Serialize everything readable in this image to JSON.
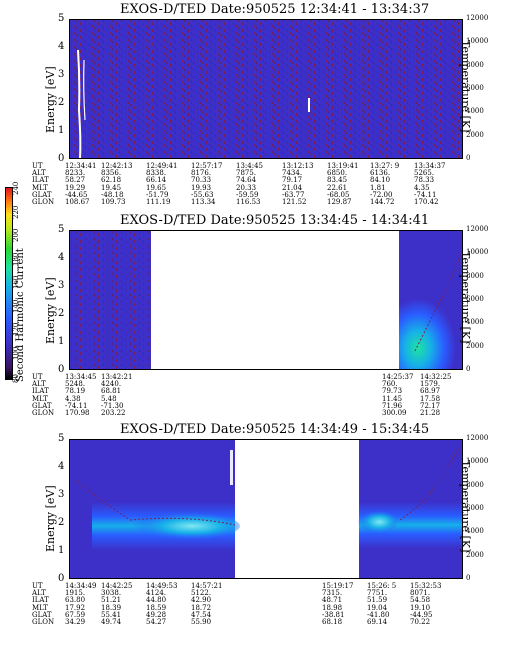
{
  "chart_data": [
    {
      "type": "heatmap",
      "title": "EXOS-D/TED  Date:950525  12:34:41 - 13:34:37",
      "ylabel": "Energy [eV]",
      "y2label": "Temperature [K]",
      "ylim": [
        0,
        5
      ],
      "y2lim": [
        0,
        12000
      ],
      "yticks": [
        "0",
        "1",
        "2",
        "3",
        "4",
        "5"
      ],
      "y2ticks": [
        "0",
        "2000",
        "4000",
        "6000",
        "8000",
        "10000",
        "12000"
      ],
      "rows": [
        {
          "name": "UT",
          "values": [
            "12:34:41",
            "12:42:13",
            "12:49:41",
            "12:57:17",
            "13:4:45",
            "13:12:13",
            "13:19:41",
            "13:27: 9",
            "13:34:37"
          ]
        },
        {
          "name": "ALT",
          "values": [
            "8233.",
            "8356.",
            "8338.",
            "8176.",
            "7875.",
            "7434.",
            "6850.",
            "6136.",
            "5265."
          ]
        },
        {
          "name": "ILAT",
          "values": [
            "58.27",
            "62.18",
            "66.14",
            "70.33",
            "74.64",
            "79.17",
            "83.45",
            "84.10",
            "78.33"
          ]
        },
        {
          "name": "MLT",
          "values": [
            "19.29",
            "19.45",
            "19.65",
            "19.93",
            "20.33",
            "21.04",
            "22.61",
            "1.81",
            "4.35"
          ]
        },
        {
          "name": "GLAT",
          "values": [
            "-44.65",
            "-48.18",
            "-51.79",
            "-55.63",
            "-59.59",
            "-63.77",
            "-68.05",
            "-72.00",
            "-74.11"
          ]
        },
        {
          "name": "GLON",
          "values": [
            "108.67",
            "109.73",
            "111.19",
            "113.34",
            "116.53",
            "121.52",
            "129.87",
            "144.72",
            "170.42"
          ]
        }
      ]
    },
    {
      "type": "heatmap",
      "title": "EXOS-D/TED   Date:950525  13:34:45 - 14:34:41",
      "ylabel": "Energy [eV]",
      "y2label": "Temperature [K]",
      "ylim": [
        0,
        5
      ],
      "y2lim": [
        0,
        12000
      ],
      "yticks": [
        "0",
        "1",
        "2",
        "3",
        "4",
        "5"
      ],
      "y2ticks": [
        "0",
        "2000",
        "4000",
        "6000",
        "8000",
        "10000",
        "12000"
      ],
      "rows": [
        {
          "name": "UT",
          "values": [
            "13:34:45",
            "13:42:21",
            "14:25:37",
            "14:32:25"
          ]
        },
        {
          "name": "ALT",
          "values": [
            "5248.",
            "4240.",
            "760.",
            "1579."
          ]
        },
        {
          "name": "ILAT",
          "values": [
            "78.19",
            "68.81",
            "79.73",
            "68.97"
          ]
        },
        {
          "name": "MLT",
          "values": [
            "4.38",
            "5.48",
            "11.45",
            "17.58"
          ]
        },
        {
          "name": "GLAT",
          "values": [
            "-74.11",
            "-71.30",
            "71.96",
            "72.17"
          ]
        },
        {
          "name": "GLON",
          "values": [
            "170.98",
            "203.22",
            "300.09",
            "21.28"
          ]
        }
      ]
    },
    {
      "type": "heatmap",
      "title": "EXOS-D/TED   Date:950525  14:34:49 - 15:34:45",
      "ylabel": "Energy [eV]",
      "y2label": "Temperature [K]",
      "ylim": [
        0,
        5
      ],
      "y2lim": [
        0,
        12000
      ],
      "yticks": [
        "0",
        "1",
        "2",
        "3",
        "4",
        "5"
      ],
      "y2ticks": [
        "0",
        "2000",
        "4000",
        "6000",
        "8000",
        "10000",
        "12000"
      ],
      "rows": [
        {
          "name": "UT",
          "values": [
            "14:34:49",
            "14:42:25",
            "14:49:53",
            "14:57:21",
            "15:19:17",
            "15:26: 5",
            "15:32:53"
          ]
        },
        {
          "name": "ALT",
          "values": [
            "1915.",
            "3038.",
            "4124.",
            "5122.",
            "7315.",
            "7751.",
            "8071."
          ]
        },
        {
          "name": "ILAT",
          "values": [
            "63.80",
            "51.21",
            "44.80",
            "42.90",
            "48.71",
            "51.59",
            "54.58"
          ]
        },
        {
          "name": "MLT",
          "values": [
            "17.92",
            "18.39",
            "18.59",
            "18.72",
            "18.98",
            "19.04",
            "19.10"
          ]
        },
        {
          "name": "GLAT",
          "values": [
            "67.59",
            "55.41",
            "49.28",
            "47.54",
            "-38.81",
            "-41.80",
            "-44.95"
          ]
        },
        {
          "name": "GLON",
          "values": [
            "34.29",
            "49.74",
            "54.27",
            "55.90",
            "68.18",
            "69.14",
            "70.22"
          ]
        }
      ]
    }
  ],
  "colorbar": {
    "label": "Second Harmonic Current",
    "ticks": [
      "80",
      "100",
      "120",
      "140",
      "160",
      "180",
      "200",
      "220",
      "240"
    ]
  },
  "colors": {
    "background": "#3d30c9",
    "low": "#2a5cff",
    "mid": "#16b0e8",
    "high": "#1fe3a0"
  }
}
